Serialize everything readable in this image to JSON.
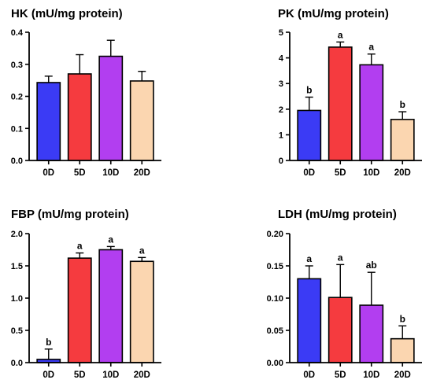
{
  "chart_data": [
    {
      "type": "bar",
      "title": "HK (mU/mg protein)",
      "categories": [
        "0D",
        "5D",
        "10D",
        "20D"
      ],
      "values": [
        0.243,
        0.27,
        0.325,
        0.248
      ],
      "errors": [
        0.02,
        0.06,
        0.05,
        0.03
      ],
      "significance": [
        "",
        "",
        "",
        ""
      ],
      "ylim": [
        0,
        0.4
      ],
      "yticks": [
        "0.0",
        "0.1",
        "0.2",
        "0.3",
        "0.4"
      ],
      "colors": [
        "#3b3bf5",
        "#f53b3f",
        "#b23ef0",
        "#fbd6b0"
      ]
    },
    {
      "type": "bar",
      "title": "PK (mU/mg protein)",
      "categories": [
        "0D",
        "5D",
        "10D",
        "20D"
      ],
      "values": [
        1.95,
        4.42,
        3.73,
        1.6
      ],
      "errors": [
        0.52,
        0.2,
        0.42,
        0.3
      ],
      "significance": [
        "b",
        "a",
        "a",
        "b"
      ],
      "ylim": [
        0,
        5
      ],
      "yticks": [
        "0",
        "1",
        "2",
        "3",
        "4",
        "5"
      ],
      "colors": [
        "#3b3bf5",
        "#f53b3f",
        "#b23ef0",
        "#fbd6b0"
      ]
    },
    {
      "type": "bar",
      "title": "FBP (mU/mg protein)",
      "categories": [
        "0D",
        "5D",
        "10D",
        "20D"
      ],
      "values": [
        0.05,
        1.62,
        1.75,
        1.57
      ],
      "errors": [
        0.16,
        0.08,
        0.05,
        0.06
      ],
      "significance": [
        "b",
        "a",
        "a",
        "a"
      ],
      "ylim": [
        0,
        2.0
      ],
      "yticks": [
        "0.0",
        "0.5",
        "1.0",
        "1.5",
        "2.0"
      ],
      "colors": [
        "#3b3bf5",
        "#f53b3f",
        "#b23ef0",
        "#fbd6b0"
      ]
    },
    {
      "type": "bar",
      "title": "LDH (mU/mg protein)",
      "categories": [
        "0D",
        "5D",
        "10D",
        "20D"
      ],
      "values": [
        0.13,
        0.101,
        0.089,
        0.037
      ],
      "errors": [
        0.02,
        0.051,
        0.051,
        0.02
      ],
      "significance": [
        "a",
        "a",
        "ab",
        "b"
      ],
      "ylim": [
        0,
        0.2
      ],
      "yticks": [
        "0.00",
        "0.05",
        "0.10",
        "0.15",
        "0.20"
      ],
      "colors": [
        "#3b3bf5",
        "#f53b3f",
        "#b23ef0",
        "#fbd6b0"
      ]
    }
  ]
}
